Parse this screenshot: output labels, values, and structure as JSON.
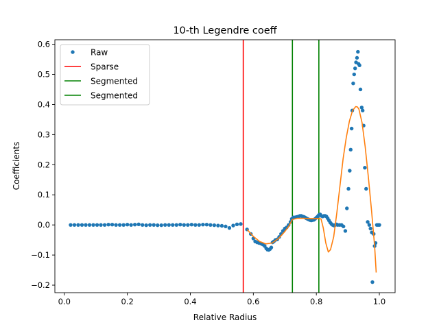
{
  "chart_data": {
    "type": "scatter",
    "title": "10-th Legendre coeff",
    "xlabel": "Relative Radius",
    "ylabel": "Coefficients",
    "xlim": [
      -0.03,
      1.05
    ],
    "ylim": [
      -0.225,
      0.615
    ],
    "xticks": [
      0.0,
      0.2,
      0.4,
      0.6,
      0.8,
      1.0
    ],
    "xtick_labels": [
      "0.0",
      "0.2",
      "0.4",
      "0.6",
      "0.8",
      "1.0"
    ],
    "yticks": [
      -0.2,
      -0.1,
      0.0,
      0.1,
      0.2,
      0.3,
      0.4,
      0.5,
      0.6
    ],
    "ytick_labels": [
      "−0.2",
      "−0.1",
      "0.0",
      "0.1",
      "0.2",
      "0.3",
      "0.4",
      "0.5",
      "0.6"
    ],
    "grid": false,
    "legend_position": "top-left",
    "legend": [
      {
        "label": "Raw",
        "kind": "marker",
        "color": "#1f77b4"
      },
      {
        "label": "Sparse",
        "kind": "line",
        "color": "#ff0000"
      },
      {
        "label": "Segmented",
        "kind": "line",
        "color": "#008000"
      },
      {
        "label": "Segmented",
        "kind": "line",
        "color": "#008000"
      }
    ],
    "vlines": [
      {
        "name": "Sparse",
        "x": 0.568,
        "color": "#ff0000"
      },
      {
        "name": "Segmented",
        "x": 0.724,
        "color": "#008000"
      },
      {
        "name": "Segmented",
        "x": 0.808,
        "color": "#008000"
      }
    ],
    "series": [
      {
        "name": "Raw",
        "kind": "scatter",
        "color": "#1f77b4",
        "points": [
          [
            0.02,
            0.0
          ],
          [
            0.032,
            0.0
          ],
          [
            0.044,
            0.0
          ],
          [
            0.056,
            0.0
          ],
          [
            0.068,
            0.0
          ],
          [
            0.08,
            0.0
          ],
          [
            0.092,
            0.0
          ],
          [
            0.104,
            0.0
          ],
          [
            0.116,
            0.0
          ],
          [
            0.128,
            0.0
          ],
          [
            0.14,
            0.001
          ],
          [
            0.152,
            0.001
          ],
          [
            0.164,
            0.0
          ],
          [
            0.176,
            0.0
          ],
          [
            0.188,
            0.0
          ],
          [
            0.2,
            0.001
          ],
          [
            0.212,
            0.0
          ],
          [
            0.224,
            0.001
          ],
          [
            0.236,
            0.002
          ],
          [
            0.248,
            0.0
          ],
          [
            0.26,
            -0.001
          ],
          [
            0.272,
            0.0
          ],
          [
            0.284,
            0.0
          ],
          [
            0.296,
            -0.001
          ],
          [
            0.308,
            -0.001
          ],
          [
            0.32,
            0.0
          ],
          [
            0.332,
            0.0
          ],
          [
            0.344,
            0.0
          ],
          [
            0.356,
            0.0
          ],
          [
            0.368,
            0.001
          ],
          [
            0.38,
            0.0
          ],
          [
            0.392,
            0.0
          ],
          [
            0.404,
            0.001
          ],
          [
            0.416,
            0.0
          ],
          [
            0.428,
            0.0
          ],
          [
            0.44,
            0.001
          ],
          [
            0.452,
            0.001
          ],
          [
            0.464,
            0.0
          ],
          [
            0.476,
            -0.001
          ],
          [
            0.488,
            -0.002
          ],
          [
            0.5,
            -0.003
          ],
          [
            0.512,
            -0.005
          ],
          [
            0.524,
            -0.01
          ],
          [
            0.536,
            -0.002
          ],
          [
            0.548,
            0.002
          ],
          [
            0.56,
            0.003
          ],
          [
            0.58,
            -0.015
          ],
          [
            0.592,
            -0.03
          ],
          [
            0.6,
            -0.045
          ],
          [
            0.606,
            -0.055
          ],
          [
            0.612,
            -0.058
          ],
          [
            0.618,
            -0.06
          ],
          [
            0.624,
            -0.062
          ],
          [
            0.63,
            -0.065
          ],
          [
            0.636,
            -0.07
          ],
          [
            0.641,
            -0.078
          ],
          [
            0.645,
            -0.082
          ],
          [
            0.649,
            -0.083
          ],
          [
            0.653,
            -0.08
          ],
          [
            0.657,
            -0.075
          ],
          [
            0.661,
            -0.058
          ],
          [
            0.665,
            -0.055
          ],
          [
            0.67,
            -0.05
          ],
          [
            0.676,
            -0.048
          ],
          [
            0.682,
            -0.04
          ],
          [
            0.688,
            -0.03
          ],
          [
            0.694,
            -0.02
          ],
          [
            0.7,
            -0.012
          ],
          [
            0.706,
            -0.008
          ],
          [
            0.712,
            0.0
          ],
          [
            0.718,
            0.01
          ],
          [
            0.722,
            0.02
          ],
          [
            0.727,
            0.025
          ],
          [
            0.732,
            0.025
          ],
          [
            0.736,
            0.026
          ],
          [
            0.74,
            0.027
          ],
          [
            0.744,
            0.028
          ],
          [
            0.748,
            0.03
          ],
          [
            0.752,
            0.03
          ],
          [
            0.756,
            0.028
          ],
          [
            0.76,
            0.027
          ],
          [
            0.764,
            0.025
          ],
          [
            0.768,
            0.022
          ],
          [
            0.772,
            0.02
          ],
          [
            0.776,
            0.018
          ],
          [
            0.78,
            0.016
          ],
          [
            0.784,
            0.015
          ],
          [
            0.788,
            0.016
          ],
          [
            0.792,
            0.017
          ],
          [
            0.796,
            0.02
          ],
          [
            0.8,
            0.024
          ],
          [
            0.804,
            0.028
          ],
          [
            0.808,
            0.033
          ],
          [
            0.812,
            0.035
          ],
          [
            0.816,
            0.03
          ],
          [
            0.82,
            0.028
          ],
          [
            0.824,
            0.03
          ],
          [
            0.828,
            0.03
          ],
          [
            0.832,
            0.028
          ],
          [
            0.836,
            0.022
          ],
          [
            0.84,
            0.015
          ],
          [
            0.844,
            0.008
          ],
          [
            0.848,
            0.003
          ],
          [
            0.852,
            0.0
          ],
          [
            0.856,
            -0.002
          ],
          [
            0.86,
            0.0
          ],
          [
            0.864,
            0.002
          ],
          [
            0.868,
            0.0
          ],
          [
            0.874,
            0.0
          ],
          [
            0.88,
            0.0
          ],
          [
            0.886,
            -0.005
          ],
          [
            0.892,
            -0.02
          ],
          [
            0.897,
            0.055
          ],
          [
            0.902,
            0.12
          ],
          [
            0.906,
            0.18
          ],
          [
            0.909,
            0.25
          ],
          [
            0.912,
            0.32
          ],
          [
            0.914,
            0.38
          ],
          [
            0.917,
            0.47
          ],
          [
            0.92,
            0.5
          ],
          [
            0.923,
            0.52
          ],
          [
            0.926,
            0.54
          ],
          [
            0.929,
            0.555
          ],
          [
            0.932,
            0.575
          ],
          [
            0.934,
            0.535
          ],
          [
            0.937,
            0.53
          ],
          [
            0.94,
            0.45
          ],
          [
            0.944,
            0.39
          ],
          [
            0.947,
            0.38
          ],
          [
            0.95,
            0.33
          ],
          [
            0.954,
            0.19
          ],
          [
            0.958,
            0.12
          ],
          [
            0.963,
            0.01
          ],
          [
            0.968,
            0.0
          ],
          [
            0.972,
            -0.012
          ],
          [
            0.976,
            -0.025
          ],
          [
            0.978,
            -0.19
          ],
          [
            0.982,
            -0.03
          ],
          [
            0.985,
            -0.07
          ],
          [
            0.988,
            -0.06
          ],
          [
            0.992,
            0.0
          ],
          [
            0.996,
            0.0
          ],
          [
            1.0,
            0.0
          ]
        ]
      },
      {
        "kind": "line",
        "color": "#ff7f0e",
        "points": [
          [
            0.58,
            -0.015
          ],
          [
            0.6,
            -0.038
          ],
          [
            0.62,
            -0.055
          ],
          [
            0.64,
            -0.063
          ],
          [
            0.66,
            -0.06
          ],
          [
            0.68,
            -0.045
          ],
          [
            0.7,
            -0.022
          ],
          [
            0.712,
            -0.005
          ],
          [
            0.724,
            0.018
          ],
          [
            0.74,
            0.022
          ],
          [
            0.76,
            0.022
          ],
          [
            0.78,
            0.021
          ],
          [
            0.8,
            0.021
          ],
          [
            0.808,
            0.021
          ],
          [
            0.815,
            0.02
          ],
          [
            0.822,
            -0.01
          ],
          [
            0.83,
            -0.06
          ],
          [
            0.838,
            -0.09
          ],
          [
            0.845,
            -0.082
          ],
          [
            0.855,
            -0.04
          ],
          [
            0.865,
            0.04
          ],
          [
            0.875,
            0.13
          ],
          [
            0.885,
            0.22
          ],
          [
            0.895,
            0.29
          ],
          [
            0.905,
            0.345
          ],
          [
            0.915,
            0.38
          ],
          [
            0.925,
            0.393
          ],
          [
            0.93,
            0.392
          ],
          [
            0.935,
            0.385
          ],
          [
            0.945,
            0.34
          ],
          [
            0.955,
            0.26
          ],
          [
            0.965,
            0.16
          ],
          [
            0.975,
            0.05
          ],
          [
            0.985,
            -0.07
          ],
          [
            0.99,
            -0.158
          ]
        ]
      }
    ]
  }
}
